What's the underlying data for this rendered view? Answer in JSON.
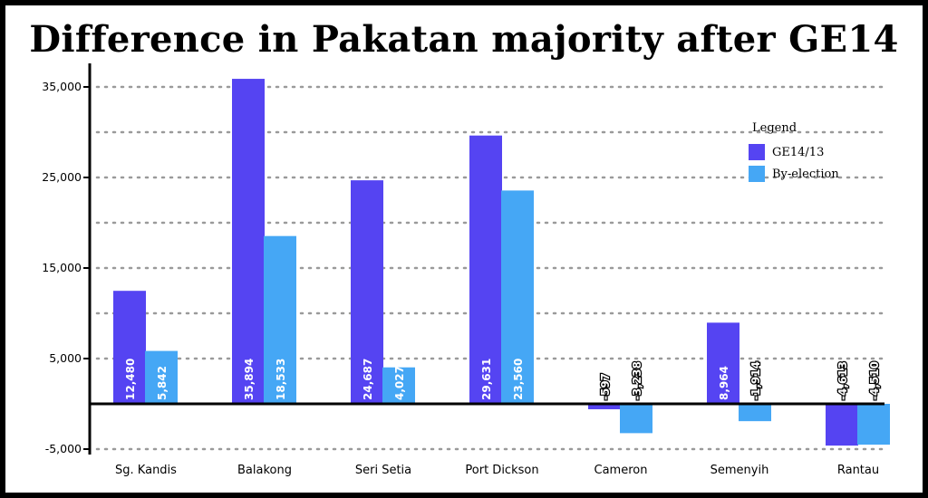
{
  "chart_data": {
    "type": "bar",
    "title": "Difference in Pakatan majority after GE14",
    "xlabel": "",
    "ylabel": "",
    "categories": [
      "Sg. Kandis",
      "Balakong",
      "Seri Setia",
      "Port Dickson",
      "Cameron",
      "Semenyih",
      "Rantau"
    ],
    "series": [
      {
        "name": "GE14/13",
        "color": "#5544f2",
        "values": [
          12480,
          35894,
          24687,
          29631,
          -597,
          8964,
          -4613
        ],
        "labels": [
          "12,480",
          "35,894",
          "24,687",
          "29,631",
          "-597",
          "8,964",
          "-4,613"
        ]
      },
      {
        "name": "By-election",
        "color": "#45a7f5",
        "values": [
          5842,
          18533,
          4027,
          23560,
          -3238,
          -1914,
          -4510
        ],
        "labels": [
          "5,842",
          "18,533",
          "4,027",
          "23,560",
          "-3,238",
          "-1,914",
          "-4,510"
        ]
      }
    ],
    "y_ticks": [
      -5000,
      5000,
      15000,
      25000,
      35000
    ],
    "y_tick_labels": [
      "-5,000",
      "5,000",
      "15,000",
      "25,000",
      "35,000"
    ],
    "ylim": [
      -5000,
      35000
    ],
    "grid": "dotted horizontal",
    "legend": {
      "title": "Legend",
      "position": "top-right"
    }
  }
}
